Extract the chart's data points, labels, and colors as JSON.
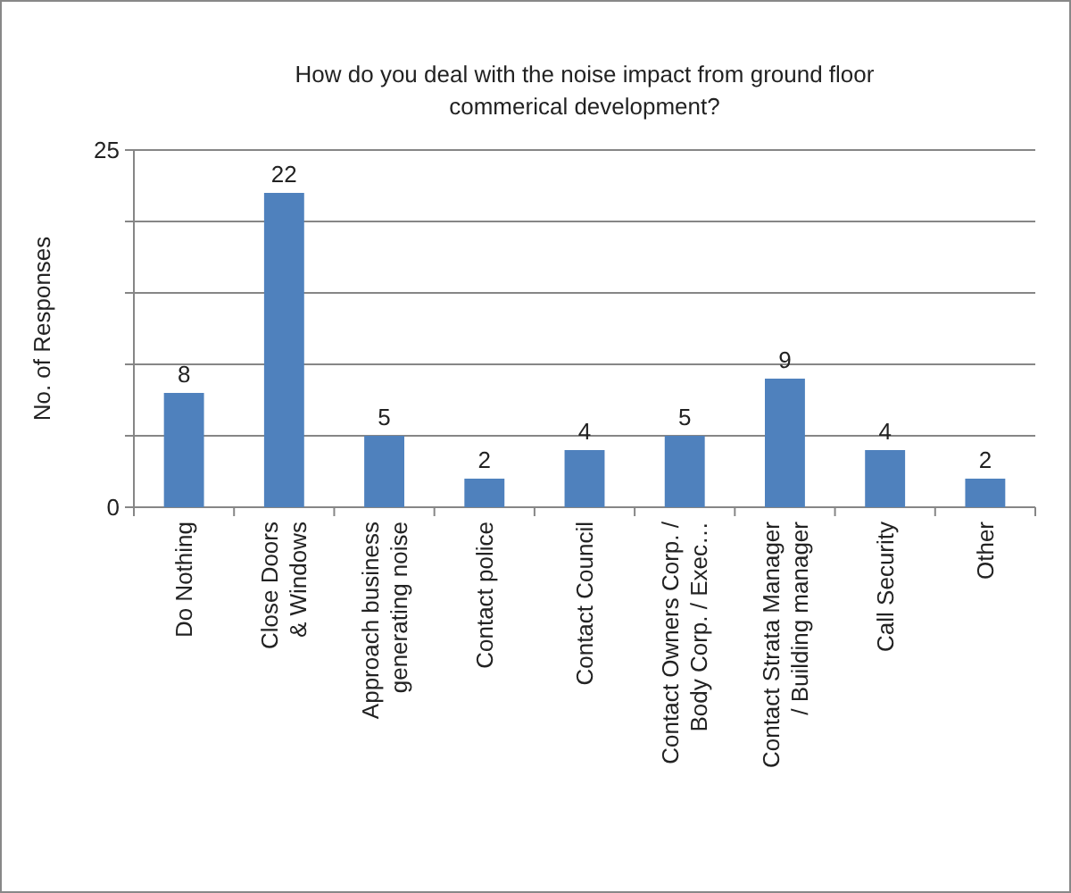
{
  "chart_data": {
    "type": "bar",
    "title": "How do you deal with the noise impact from ground floor\ncommerical development?",
    "ylabel": "No. of Responses",
    "categories": [
      "Do Nothing",
      "Close Doors\n& Windows",
      "Approach business\ngenerating noise",
      "Contact police",
      "Contact Council",
      "Contact Owners Corp. /\nBody Corp. / Exec…",
      "Contact Strata Manager\n/ Building manager",
      "Call Security",
      "Other"
    ],
    "values": [
      8,
      22,
      5,
      2,
      4,
      5,
      9,
      4,
      2
    ],
    "color": "#4f81bd",
    "ylim": [
      0,
      25
    ],
    "yticks": [
      0,
      {
        "value": 5,
        "label": null
      },
      {
        "value": 10,
        "label": null
      },
      {
        "value": 15,
        "label": null
      },
      {
        "value": 20,
        "label": null
      },
      25
    ],
    "grid": "y",
    "data_labels": true
  }
}
